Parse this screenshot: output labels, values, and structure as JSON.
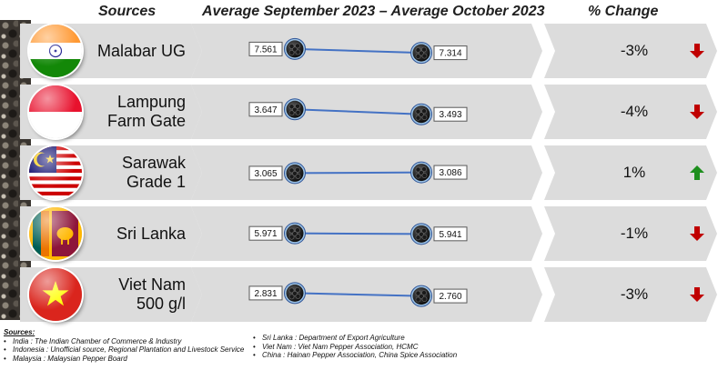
{
  "headers": {
    "sources": "Sources",
    "average": "Average September 2023 – Average October 2023",
    "change": "% Change"
  },
  "colors": {
    "row_background": "#dcdcdc",
    "connector_line": "#4472c4",
    "decrease_arrow": "#c00000",
    "increase_arrow": "#1e8f1e"
  },
  "chart_data": {
    "type": "line",
    "x": [
      "Average September 2023",
      "Average October 2023"
    ],
    "series": [
      {
        "name": "Malabar UG",
        "flag_icon": "india-flag-icon",
        "values": [
          7.561,
          7.314
        ],
        "labels": [
          "7.561",
          "7.314"
        ],
        "change": "-3%",
        "direction": "down"
      },
      {
        "name": "Lampung Farm Gate",
        "flag_icon": "indonesia-flag-icon",
        "values": [
          3.647,
          3.493
        ],
        "labels": [
          "3.647",
          "3.493"
        ],
        "change": "-4%",
        "direction": "down"
      },
      {
        "name": "Sarawak Grade 1",
        "flag_icon": "malaysia-flag-icon",
        "values": [
          3.065,
          3.086
        ],
        "labels": [
          "3.065",
          "3.086"
        ],
        "change": "1%",
        "direction": "up"
      },
      {
        "name": "Sri Lanka",
        "flag_icon": "sri-lanka-flag-icon",
        "values": [
          5.971,
          5.941
        ],
        "labels": [
          "5.971",
          "5.941"
        ],
        "change": "-1%",
        "direction": "down"
      },
      {
        "name": "Viet Nam 500 g/l",
        "flag_icon": "vietnam-flag-icon",
        "values": [
          2.831,
          2.76
        ],
        "labels": [
          "2.831",
          "2.760"
        ],
        "change": "-3%",
        "direction": "down"
      }
    ]
  },
  "rows": [
    {
      "lines": [
        "Malabar UG"
      ]
    },
    {
      "lines": [
        "Lampung",
        "Farm Gate"
      ]
    },
    {
      "lines": [
        "Sarawak",
        "Grade 1"
      ]
    },
    {
      "lines": [
        "Sri Lanka"
      ]
    },
    {
      "lines": [
        "Viet Nam",
        "500 g/l"
      ]
    }
  ],
  "footer": {
    "title": "Sources:",
    "left": [
      "India : The Indian Chamber of Commerce & Industry",
      "Indonesia : Unofficial source, Regional Plantation and Livestock Service",
      "Malaysia : Malaysian Pepper Board"
    ],
    "right": [
      "Sri Lanka : Department of Export Agriculture",
      "Viet Nam : Viet Nam Pepper Association, HCMC",
      "China : Hainan Pepper Association, China Spice Association"
    ]
  }
}
